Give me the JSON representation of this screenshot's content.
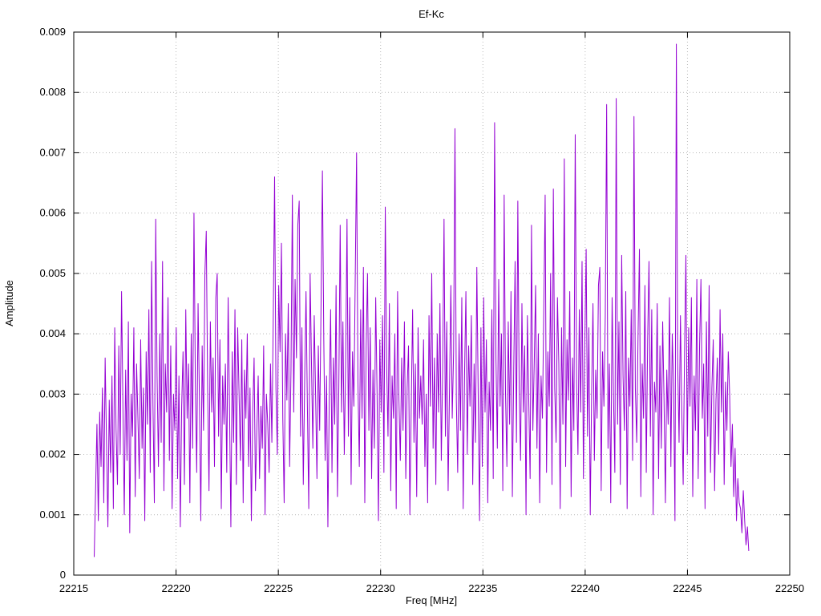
{
  "chart_data": {
    "type": "line",
    "title": "Ef-Kc",
    "xlabel": "Freq [MHz]",
    "ylabel": "Amplitude",
    "xlim": [
      22215,
      22250
    ],
    "ylim": [
      0,
      0.009
    ],
    "x_ticks": [
      22215,
      22220,
      22225,
      22230,
      22235,
      22240,
      22245,
      22250
    ],
    "y_ticks": [
      0,
      0.001,
      0.002,
      0.003,
      0.004,
      0.005,
      0.006,
      0.007,
      0.008,
      0.009
    ],
    "grid": true,
    "legend": "none",
    "line_color": "#9400d3",
    "series": [
      {
        "name": "Ef-Kc",
        "x_start": 22216.0,
        "x_step": 0.0668,
        "y_values": [
          0.0003,
          0.0014,
          0.0025,
          0.0009,
          0.0027,
          0.0018,
          0.0031,
          0.0012,
          0.0036,
          0.0022,
          0.0008,
          0.0029,
          0.0017,
          0.0033,
          0.0011,
          0.0041,
          0.0024,
          0.0015,
          0.0038,
          0.002,
          0.0047,
          0.0028,
          0.001,
          0.0034,
          0.0019,
          0.0042,
          0.0007,
          0.003,
          0.0023,
          0.0041,
          0.0013,
          0.0035,
          0.0026,
          0.0016,
          0.0039,
          0.0021,
          0.0031,
          0.0009,
          0.0037,
          0.0025,
          0.0044,
          0.0017,
          0.0052,
          0.0028,
          0.0012,
          0.0059,
          0.0033,
          0.0018,
          0.004,
          0.0022,
          0.0052,
          0.0014,
          0.0035,
          0.0027,
          0.0046,
          0.0019,
          0.0038,
          0.0011,
          0.003,
          0.0024,
          0.0041,
          0.0016,
          0.0033,
          0.0008,
          0.0028,
          0.0037,
          0.0015,
          0.0044,
          0.0026,
          0.0035,
          0.0012,
          0.004,
          0.0021,
          0.006,
          0.0032,
          0.0017,
          0.0045,
          0.0029,
          0.0009,
          0.0038,
          0.0024,
          0.005,
          0.0057,
          0.0031,
          0.0014,
          0.0042,
          0.0027,
          0.0036,
          0.0018,
          0.0046,
          0.005,
          0.0023,
          0.0039,
          0.0011,
          0.0033,
          0.0025,
          0.0035,
          0.0017,
          0.0046,
          0.0028,
          0.0008,
          0.0037,
          0.0022,
          0.0044,
          0.0015,
          0.0041,
          0.003,
          0.0019,
          0.0039,
          0.0012,
          0.0034,
          0.0026,
          0.004,
          0.0018,
          0.0031,
          0.0009,
          0.0027,
          0.0036,
          0.0014,
          0.0024,
          0.0033,
          0.0016,
          0.0028,
          0.0021,
          0.0038,
          0.001,
          0.003,
          0.0025,
          0.0017,
          0.0035,
          0.0022,
          0.0042,
          0.0066,
          0.0031,
          0.002,
          0.0048,
          0.0037,
          0.0055,
          0.0026,
          0.0012,
          0.004,
          0.0029,
          0.0045,
          0.0018,
          0.0034,
          0.0063,
          0.0027,
          0.0049,
          0.0036,
          0.0058,
          0.0062,
          0.0023,
          0.0041,
          0.0015,
          0.0032,
          0.0047,
          0.0028,
          0.0011,
          0.005,
          0.0035,
          0.0021,
          0.0043,
          0.003,
          0.0016,
          0.0038,
          0.0024,
          0.0045,
          0.0067,
          0.0039,
          0.0019,
          0.0033,
          0.0008,
          0.0029,
          0.0044,
          0.0017,
          0.0036,
          0.0025,
          0.0048,
          0.0013,
          0.0031,
          0.0058,
          0.0027,
          0.0042,
          0.002,
          0.0035,
          0.0059,
          0.0023,
          0.0046,
          0.0015,
          0.0037,
          0.0028,
          0.0049,
          0.007,
          0.0032,
          0.0018,
          0.0044,
          0.0026,
          0.0051,
          0.0012,
          0.0038,
          0.005,
          0.0024,
          0.0041,
          0.0016,
          0.0034,
          0.0021,
          0.0046,
          0.003,
          0.0009,
          0.0039,
          0.0027,
          0.0043,
          0.0017,
          0.0061,
          0.0035,
          0.0023,
          0.0045,
          0.0014,
          0.0033,
          0.0026,
          0.004,
          0.0011,
          0.0047,
          0.0029,
          0.0019,
          0.0036,
          0.0024,
          0.0042,
          0.0016,
          0.0031,
          0.0038,
          0.001,
          0.0028,
          0.0044,
          0.0022,
          0.0035,
          0.0013,
          0.0041,
          0.0026,
          0.0033,
          0.0025,
          0.0039,
          0.0018,
          0.003,
          0.0012,
          0.0043,
          0.0028,
          0.005,
          0.0021,
          0.0036,
          0.0015,
          0.004,
          0.0027,
          0.0045,
          0.0019,
          0.0034,
          0.0059,
          0.0023,
          0.0042,
          0.0014,
          0.0031,
          0.0048,
          0.0026,
          0.0037,
          0.0074,
          0.0029,
          0.0017,
          0.004,
          0.0024,
          0.0046,
          0.0011,
          0.0033,
          0.0047,
          0.002,
          0.0038,
          0.0028,
          0.0043,
          0.0015,
          0.0035,
          0.0022,
          0.0051,
          0.003,
          0.0009,
          0.0041,
          0.0018,
          0.0046,
          0.0027,
          0.0039,
          0.0012,
          0.0032,
          0.0024,
          0.0044,
          0.0016,
          0.0075,
          0.0036,
          0.0021,
          0.0049,
          0.0028,
          0.004,
          0.0014,
          0.0063,
          0.003,
          0.0018,
          0.0042,
          0.0025,
          0.0047,
          0.0013,
          0.0034,
          0.0052,
          0.0022,
          0.0062,
          0.0031,
          0.0019,
          0.0045,
          0.0027,
          0.0038,
          0.001,
          0.0043,
          0.0029,
          0.0016,
          0.0058,
          0.0024,
          0.0035,
          0.0048,
          0.0021,
          0.004,
          0.0012,
          0.0033,
          0.0026,
          0.0044,
          0.0063,
          0.0017,
          0.0037,
          0.0028,
          0.005,
          0.0015,
          0.0064,
          0.0031,
          0.0022,
          0.0046,
          0.0035,
          0.0011,
          0.0041,
          0.0025,
          0.0069,
          0.0018,
          0.0039,
          0.0029,
          0.0047,
          0.0013,
          0.0036,
          0.0024,
          0.0073,
          0.0032,
          0.002,
          0.0044,
          0.0027,
          0.0052,
          0.0016,
          0.0038,
          0.0054,
          0.0023,
          0.0041,
          0.001,
          0.003,
          0.0045,
          0.0019,
          0.0034,
          0.0026,
          0.0048,
          0.0051,
          0.0014,
          0.0037,
          0.0028,
          0.0043,
          0.0078,
          0.0021,
          0.0035,
          0.0012,
          0.0046,
          0.003,
          0.0017,
          0.0079,
          0.0025,
          0.0042,
          0.0015,
          0.0053,
          0.0033,
          0.0024,
          0.0047,
          0.0011,
          0.0036,
          0.0028,
          0.0044,
          0.0019,
          0.0076,
          0.0031,
          0.0022,
          0.004,
          0.0054,
          0.0013,
          0.0035,
          0.0026,
          0.0048,
          0.0017,
          0.0039,
          0.0052,
          0.0023,
          0.0044,
          0.001,
          0.0032,
          0.0027,
          0.0045,
          0.0016,
          0.0038,
          0.0021,
          0.0042,
          0.0029,
          0.0012,
          0.0034,
          0.0025,
          0.0046,
          0.0018,
          0.004,
          0.0031,
          0.0009,
          0.0088,
          0.0035,
          0.0022,
          0.0043,
          0.0027,
          0.0015,
          0.0037,
          0.0053,
          0.002,
          0.0041,
          0.0028,
          0.0046,
          0.0013,
          0.0033,
          0.0024,
          0.0049,
          0.0016,
          0.0038,
          0.0049,
          0.0026,
          0.0035,
          0.0011,
          0.0042,
          0.0023,
          0.0048,
          0.0017,
          0.0031,
          0.0039,
          0.0014,
          0.0029,
          0.0036,
          0.002,
          0.0044,
          0.0027,
          0.004,
          0.0015,
          0.0032,
          0.0024,
          0.0037,
          0.003,
          0.0018,
          0.0025,
          0.0013,
          0.0021,
          0.0009,
          0.0016,
          0.0012,
          0.0011,
          0.0007,
          0.0014,
          0.0009,
          0.0005,
          0.0008,
          0.0004
        ]
      }
    ]
  }
}
